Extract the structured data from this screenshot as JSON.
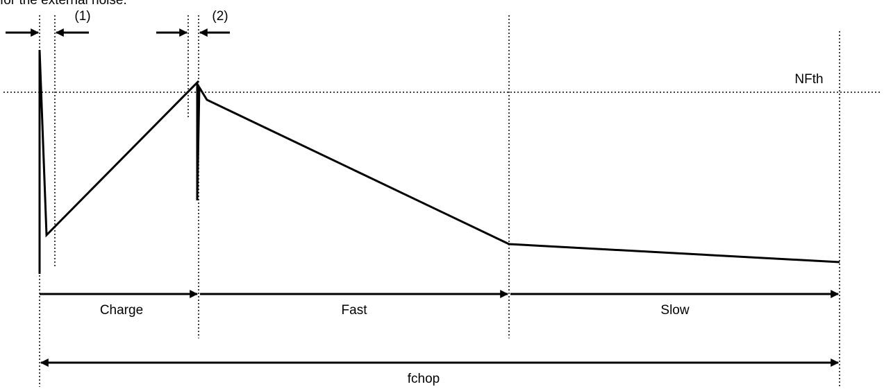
{
  "header_fragment": "for the external noise.",
  "labels": {
    "marker_1": "(1)",
    "marker_2": "(2)",
    "threshold": "NFth",
    "phase_charge": "Charge",
    "phase_fast": "Fast",
    "phase_slow": "Slow",
    "period": "fchop"
  },
  "colors": {
    "stroke": "#000000",
    "background": "#ffffff"
  }
}
